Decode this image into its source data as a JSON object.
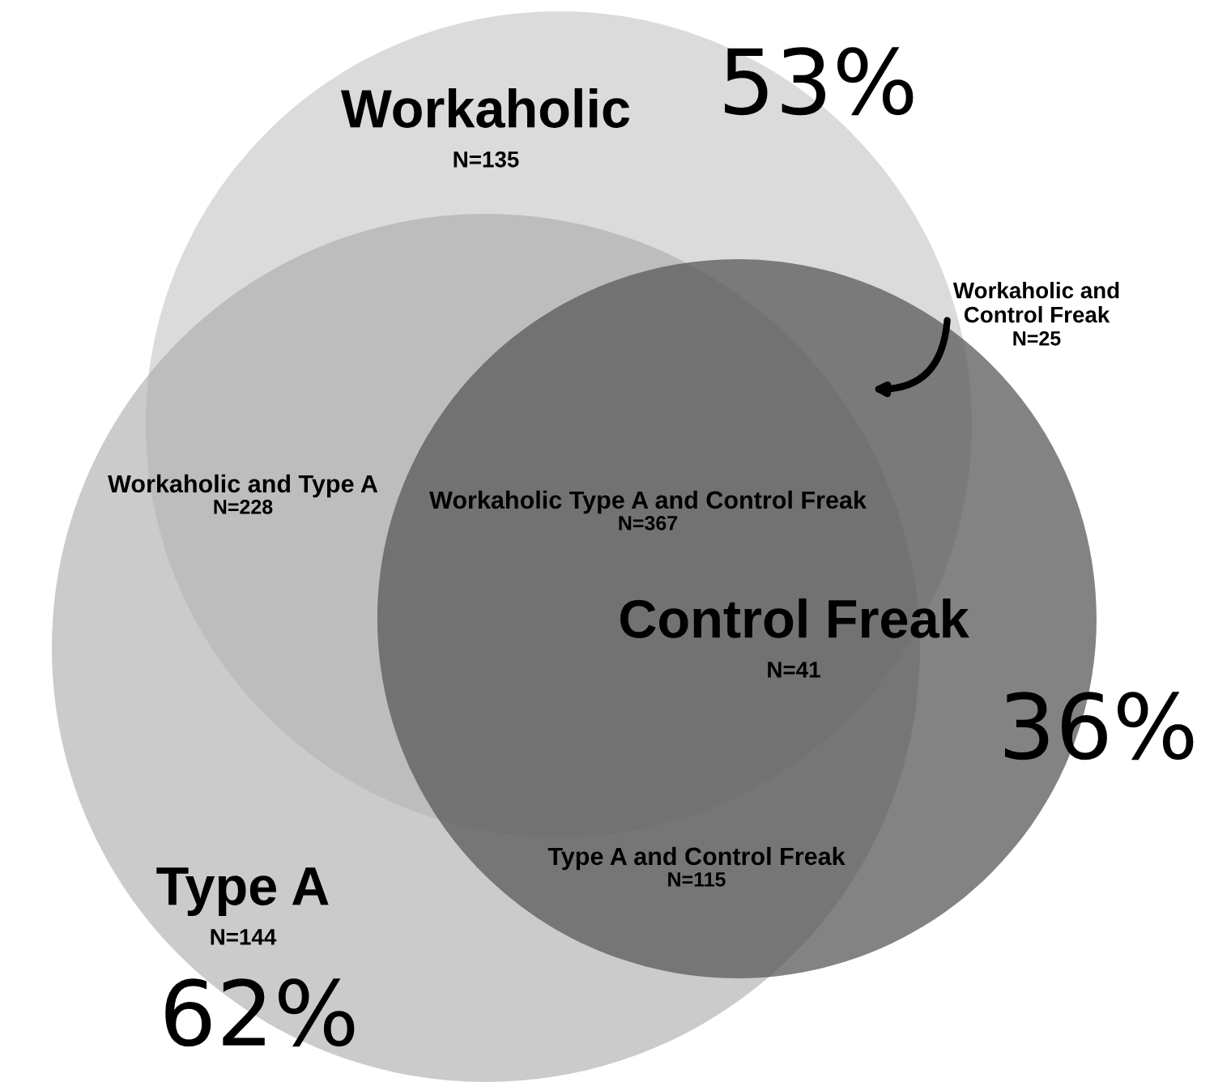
{
  "chart_data": {
    "type": "other",
    "categories": [
      "Workaholic",
      "Type A",
      "Control Freak",
      "Workaholic and Type A",
      "Workaholic and\nControl Freak",
      "Type A and Control Freak",
      "Workaholic Type A and Control Freak"
    ],
    "values": [
      135,
      144,
      41,
      228,
      25,
      115,
      367
    ],
    "value_labels": [
      "N=135",
      "N=144",
      "N=41",
      "N=228",
      "N=25",
      "N=115",
      "N=367"
    ],
    "annotations": [
      "53%",
      "62%",
      "36%"
    ]
  }
}
